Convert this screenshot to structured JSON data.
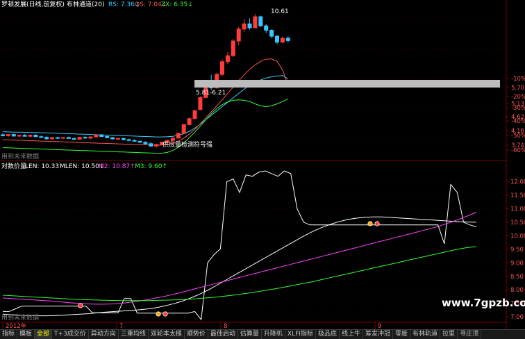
{
  "main_panel": {
    "title": "罗顿发展(日线,前复权)",
    "indicator_name": "布林通道(20)",
    "legend": [
      {
        "label": "RS: 7.36",
        "arrow": "↓",
        "color": "#33ccff"
      },
      {
        "label": "QS: 7.04",
        "arrow": "↓",
        "color": "#ff5555"
      },
      {
        "label": "ZX: 6.35",
        "arrow": "↓",
        "color": "#33ff33"
      }
    ],
    "high_label": "10.61",
    "gap_label": "5.81-6.21",
    "low_label": "供应量检测符号强",
    "footer_label": "用到未来数据",
    "y_ticks": [
      {
        "value": "-10%",
        "color": "#ff5555"
      },
      {
        "value": "5.70",
        "color": "#ff5555"
      },
      {
        "value": "-20%",
        "color": "#ff5555"
      },
      {
        "value": "5.13",
        "color": "#ff5555"
      },
      {
        "value": "-30%",
        "color": "#ff5555"
      },
      {
        "value": "4.62",
        "color": "#ff5555"
      },
      {
        "value": "-40%",
        "color": "#ff5555"
      },
      {
        "value": "4.16",
        "color": "#ff5555"
      },
      {
        "value": "-50%",
        "color": "#ff5555"
      },
      {
        "value": "3.74",
        "color": "#ff5555"
      },
      {
        "value": "-60%",
        "color": "#ff5555"
      }
    ]
  },
  "sub_panel": {
    "title": "对数价量",
    "legend": [
      {
        "label": "LEN: 10.33",
        "color": "#ffffff"
      },
      {
        "label": "MLEN: 10.50",
        "arrow": "↓",
        "color": "#ffffff"
      },
      {
        "label": "M2: 10.87",
        "arrow": "↑",
        "color": "#ff44ff"
      },
      {
        "label": "M3: 9.60",
        "arrow": "↑",
        "color": "#33ff33"
      }
    ],
    "footer_label": "用到未来数据",
    "y_ticks": [
      "12.00",
      "11.50",
      "11.00",
      "10.50",
      "10.00",
      "9.50",
      "9.00",
      "8.50",
      "8.00",
      "7.50",
      "7.00"
    ]
  },
  "x_axis": {
    "labels": [
      "2012年",
      "7",
      "8",
      "9"
    ]
  },
  "watermark": "www.7gpzb.com",
  "tabs": [
    "指标",
    "模板",
    "全部",
    "T+3成交价",
    "异动方向",
    "三重均线",
    "双轮本太極",
    "顺势价",
    "最佳启动",
    "估算量",
    "升降机",
    "XLFI指标",
    "极品底",
    "线上牛",
    "筹发冲冠",
    "零度",
    "布林轨道",
    "拉里",
    "寻庄顶"
  ],
  "active_tab": 2,
  "chart_data": [
    {
      "type": "candlestick",
      "title": "罗顿发展(日线,前复权) 布林通道(20)",
      "y_axis_ticks": [
        "5.70",
        "5.13",
        "4.62",
        "4.16",
        "3.74"
      ],
      "y_axis_percent_ticks": [
        "-10%",
        "-20%",
        "-30%",
        "-40%",
        "-50%",
        "-60%"
      ],
      "ylim": [
        3.5,
        10.9
      ],
      "x_labels": [
        "2012年",
        "7",
        "8",
        "9"
      ],
      "candles": [
        {
          "o": 4.55,
          "h": 4.62,
          "l": 4.46,
          "c": 4.5
        },
        {
          "o": 4.5,
          "h": 4.6,
          "l": 4.44,
          "c": 4.56
        },
        {
          "o": 4.56,
          "h": 4.6,
          "l": 4.46,
          "c": 4.48
        },
        {
          "o": 4.48,
          "h": 4.55,
          "l": 4.4,
          "c": 4.52
        },
        {
          "o": 4.52,
          "h": 4.58,
          "l": 4.46,
          "c": 4.47
        },
        {
          "o": 4.47,
          "h": 4.56,
          "l": 4.42,
          "c": 4.53
        },
        {
          "o": 4.53,
          "h": 4.58,
          "l": 4.44,
          "c": 4.45
        },
        {
          "o": 4.45,
          "h": 4.52,
          "l": 4.38,
          "c": 4.42
        },
        {
          "o": 4.42,
          "h": 4.48,
          "l": 4.3,
          "c": 4.34
        },
        {
          "o": 4.34,
          "h": 4.44,
          "l": 4.3,
          "c": 4.4
        },
        {
          "o": 4.4,
          "h": 4.46,
          "l": 4.34,
          "c": 4.38
        },
        {
          "o": 4.38,
          "h": 4.44,
          "l": 4.32,
          "c": 4.41
        },
        {
          "o": 4.41,
          "h": 4.46,
          "l": 4.34,
          "c": 4.36
        },
        {
          "o": 4.36,
          "h": 4.42,
          "l": 4.28,
          "c": 4.32
        },
        {
          "o": 4.32,
          "h": 4.44,
          "l": 4.3,
          "c": 4.42
        },
        {
          "o": 4.42,
          "h": 4.5,
          "l": 4.36,
          "c": 4.38
        },
        {
          "o": 4.38,
          "h": 4.46,
          "l": 4.32,
          "c": 4.44
        },
        {
          "o": 4.44,
          "h": 4.56,
          "l": 4.4,
          "c": 4.54
        },
        {
          "o": 4.54,
          "h": 4.58,
          "l": 4.44,
          "c": 4.46
        },
        {
          "o": 4.46,
          "h": 4.5,
          "l": 4.38,
          "c": 4.4
        },
        {
          "o": 4.4,
          "h": 4.44,
          "l": 4.3,
          "c": 4.34
        },
        {
          "o": 4.34,
          "h": 4.4,
          "l": 4.28,
          "c": 4.36
        },
        {
          "o": 4.36,
          "h": 4.4,
          "l": 4.26,
          "c": 4.3
        },
        {
          "o": 4.3,
          "h": 4.36,
          "l": 4.22,
          "c": 4.26
        },
        {
          "o": 4.26,
          "h": 4.32,
          "l": 4.2,
          "c": 4.22
        },
        {
          "o": 4.22,
          "h": 4.28,
          "l": 4.14,
          "c": 4.17
        },
        {
          "o": 4.17,
          "h": 4.22,
          "l": 4.06,
          "c": 4.1
        },
        {
          "o": 4.1,
          "h": 4.18,
          "l": 3.92,
          "c": 3.98
        },
        {
          "o": 3.98,
          "h": 4.1,
          "l": 3.9,
          "c": 4.06
        },
        {
          "o": 4.06,
          "h": 4.2,
          "l": 4.02,
          "c": 4.18
        },
        {
          "o": 4.18,
          "h": 4.28,
          "l": 4.14,
          "c": 4.26
        },
        {
          "o": 4.26,
          "h": 4.42,
          "l": 4.22,
          "c": 4.38
        },
        {
          "o": 4.38,
          "h": 4.66,
          "l": 4.36,
          "c": 4.62
        },
        {
          "o": 4.62,
          "h": 5.08,
          "l": 4.6,
          "c": 5.06
        },
        {
          "o": 5.06,
          "h": 5.4,
          "l": 5.02,
          "c": 5.36
        },
        {
          "o": 5.36,
          "h": 5.8,
          "l": 5.32,
          "c": 5.76
        },
        {
          "o": 5.81,
          "h": 6.48,
          "l": 5.78,
          "c": 6.42
        },
        {
          "o": 6.42,
          "h": 7.1,
          "l": 6.38,
          "c": 7.02
        },
        {
          "o": 7.02,
          "h": 7.56,
          "l": 6.8,
          "c": 6.9
        },
        {
          "o": 6.9,
          "h": 7.66,
          "l": 6.86,
          "c": 7.58
        },
        {
          "o": 7.58,
          "h": 8.34,
          "l": 7.5,
          "c": 8.22
        },
        {
          "o": 8.22,
          "h": 8.7,
          "l": 8.1,
          "c": 8.52
        },
        {
          "o": 8.52,
          "h": 9.36,
          "l": 8.46,
          "c": 9.26
        },
        {
          "o": 9.26,
          "h": 9.96,
          "l": 9.04,
          "c": 9.86
        },
        {
          "o": 9.86,
          "h": 10.36,
          "l": 9.7,
          "c": 10.12
        },
        {
          "o": 10.12,
          "h": 10.4,
          "l": 9.84,
          "c": 9.92
        },
        {
          "o": 9.92,
          "h": 10.61,
          "l": 9.9,
          "c": 10.48
        },
        {
          "o": 10.48,
          "h": 10.54,
          "l": 9.96,
          "c": 10.02
        },
        {
          "o": 10.02,
          "h": 10.1,
          "l": 9.66,
          "c": 9.8
        },
        {
          "o": 9.8,
          "h": 9.86,
          "l": 9.4,
          "c": 9.5
        },
        {
          "o": 9.5,
          "h": 9.56,
          "l": 9.1,
          "c": 9.2
        },
        {
          "o": 9.2,
          "h": 9.48,
          "l": 9.14,
          "c": 9.4
        },
        {
          "o": 9.4,
          "h": 9.5,
          "l": 9.18,
          "c": 9.28
        }
      ],
      "series": [
        {
          "name": "RS",
          "color": "#33ccff",
          "values": [
            4.7,
            4.69,
            4.68,
            4.68,
            4.67,
            4.66,
            4.66,
            4.65,
            4.64,
            4.63,
            4.62,
            4.61,
            4.6,
            4.59,
            4.58,
            4.57,
            4.56,
            4.55,
            4.54,
            4.53,
            4.52,
            4.51,
            4.5,
            4.49,
            4.48,
            4.47,
            4.46,
            4.45,
            4.44,
            4.44,
            4.45,
            4.47,
            4.52,
            4.6,
            4.72,
            4.88,
            5.08,
            5.3,
            5.52,
            5.74,
            5.96,
            6.18,
            6.4,
            6.62,
            6.84,
            7.02,
            7.18,
            7.3,
            7.4,
            7.46,
            7.5,
            7.52,
            7.36
          ]
        },
        {
          "name": "QS",
          "color": "#ff5555",
          "values": [
            4.3,
            4.29,
            4.28,
            4.27,
            4.26,
            4.25,
            4.24,
            4.23,
            4.22,
            4.21,
            4.2,
            4.19,
            4.18,
            4.17,
            4.16,
            4.15,
            4.14,
            4.13,
            4.12,
            4.11,
            4.1,
            4.09,
            4.08,
            4.07,
            4.06,
            4.05,
            4.04,
            4.03,
            4.02,
            4.03,
            4.06,
            4.12,
            4.22,
            4.38,
            4.58,
            4.82,
            5.1,
            5.4,
            5.7,
            6.0,
            6.3,
            6.62,
            6.94,
            7.26,
            7.56,
            7.84,
            8.06,
            8.24,
            8.34,
            8.36,
            8.24,
            7.8,
            7.04
          ]
        },
        {
          "name": "ZX",
          "color": "#33ff33",
          "values": [
            3.9,
            3.89,
            3.88,
            3.87,
            3.86,
            3.85,
            3.84,
            3.83,
            3.82,
            3.81,
            3.8,
            3.79,
            3.78,
            3.77,
            3.76,
            3.75,
            3.74,
            3.73,
            3.72,
            3.71,
            3.7,
            3.69,
            3.68,
            3.67,
            3.66,
            3.65,
            3.64,
            3.63,
            3.62,
            3.62,
            3.66,
            3.76,
            3.92,
            4.14,
            4.4,
            4.68,
            4.98,
            5.3,
            5.6,
            5.86,
            6.06,
            6.2,
            6.28,
            6.3,
            6.28,
            6.22,
            6.1,
            6.0,
            5.96,
            6.0,
            6.1,
            6.22,
            6.35
          ]
        }
      ],
      "annotations": {
        "high": "10.61",
        "gap": "5.81-6.21",
        "signal": "供应量检测符号强"
      }
    },
    {
      "type": "line",
      "title": "对数价量",
      "y_axis_ticks": [
        "12.00",
        "11.50",
        "11.00",
        "10.50",
        "10.00",
        "9.50",
        "9.00",
        "8.50",
        "8.00",
        "7.50",
        "7.00"
      ],
      "ylim": [
        6.85,
        12.4
      ],
      "series": [
        {
          "name": "LEN",
          "color": "#ffffff",
          "values": [
            7.2,
            7.2,
            7.3,
            7.4,
            7.4,
            7.4,
            7.4,
            7.4,
            7.4,
            7.4,
            7.4,
            7.4,
            7.4,
            7.4,
            7.15,
            7.15,
            7.15,
            7.15,
            7.15,
            7.68,
            7.68,
            7.14,
            7.14,
            7.14,
            7.14,
            7.14,
            7.14,
            7.14,
            7.14,
            7.14,
            7.2,
            6.9,
            9.0,
            9.3,
            9.52,
            12.0,
            12.1,
            11.6,
            12.25,
            12.2,
            12.35,
            12.4,
            12.3,
            12.2,
            12.4,
            12.3,
            11.0,
            10.5,
            10.4,
            10.4,
            10.4,
            10.4,
            10.4,
            10.4,
            10.4,
            10.4,
            10.4,
            10.4,
            10.4,
            10.4,
            10.4,
            10.4,
            10.4,
            10.4,
            10.4,
            10.4,
            10.4,
            10.4,
            10.4,
            9.7,
            11.9,
            11.6,
            10.5,
            10.4,
            10.33
          ]
        },
        {
          "name": "MLEN",
          "color": "#ffffff",
          "values": [
            7.1,
            7.08,
            7.06,
            7.05,
            7.04,
            7.04,
            7.05,
            7.06,
            7.08,
            7.1,
            7.12,
            7.15,
            7.18,
            7.2,
            7.22,
            7.24,
            7.27,
            7.3,
            7.35,
            7.42,
            7.5,
            7.6,
            7.72,
            7.86,
            8.02,
            8.2,
            8.38,
            8.56,
            8.74,
            8.92,
            9.1,
            9.28,
            9.46,
            9.64,
            9.82,
            10.0,
            10.16,
            10.3,
            10.42,
            10.52,
            10.6,
            10.65,
            10.68,
            10.7,
            10.7,
            10.68,
            10.66,
            10.64,
            10.62,
            10.6,
            10.58,
            10.56,
            10.54,
            10.52,
            10.51,
            10.5
          ]
        },
        {
          "name": "M2",
          "color": "#ff44ff",
          "values": [
            7.7,
            7.68,
            7.66,
            7.64,
            7.62,
            7.6,
            7.58,
            7.55,
            7.52,
            7.5,
            7.48,
            7.47,
            7.47,
            7.48,
            7.5,
            7.54,
            7.58,
            7.63,
            7.69,
            7.75,
            7.82,
            7.9,
            7.98,
            8.06,
            8.14,
            8.22,
            8.3,
            8.38,
            8.46,
            8.54,
            8.62,
            8.7,
            8.78,
            8.86,
            8.94,
            9.02,
            9.1,
            9.18,
            9.26,
            9.34,
            9.42,
            9.5,
            9.58,
            9.66,
            9.74,
            9.82,
            9.9,
            9.98,
            10.06,
            10.14,
            10.22,
            10.3,
            10.4,
            10.5,
            10.62,
            10.74,
            10.87
          ]
        },
        {
          "name": "M3",
          "color": "#33ff33",
          "values": [
            7.8,
            7.78,
            7.76,
            7.74,
            7.72,
            7.7,
            7.68,
            7.66,
            7.64,
            7.63,
            7.62,
            7.61,
            7.6,
            7.6,
            7.6,
            7.6,
            7.61,
            7.62,
            7.63,
            7.65,
            7.67,
            7.7,
            7.73,
            7.77,
            7.81,
            7.86,
            7.91,
            7.97,
            8.03,
            8.09,
            8.16,
            8.23,
            8.3,
            8.38,
            8.46,
            8.54,
            8.62,
            8.7,
            8.78,
            8.86,
            8.94,
            9.02,
            9.1,
            9.18,
            9.26,
            9.34,
            9.42,
            9.5,
            9.56,
            9.6
          ]
        }
      ]
    }
  ]
}
